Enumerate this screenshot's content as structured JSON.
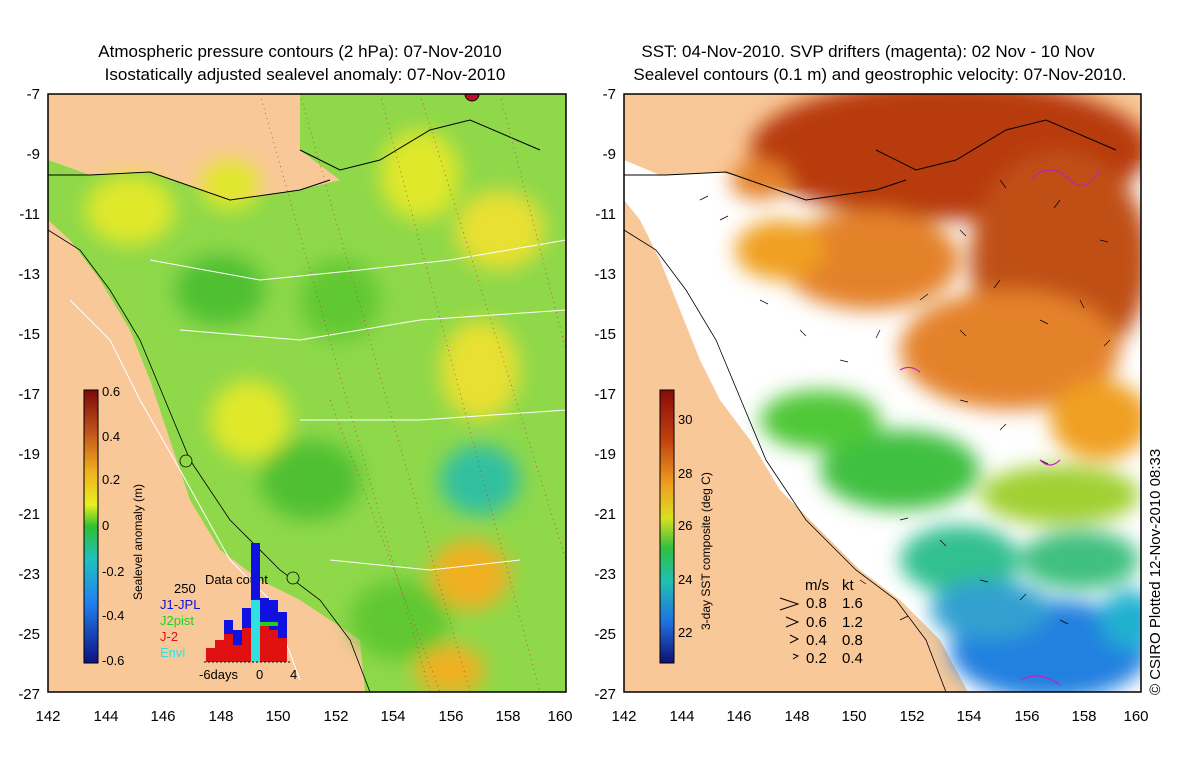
{
  "left_panel": {
    "title_line1": "Atmospheric pressure contours (2 hPa): 07-Nov-2010",
    "title_line2": "Isostatically adjusted sealevel anomaly: 07-Nov-2010",
    "colorbar": {
      "label": "Sealevel anomaly (m)",
      "ticks": [
        "0.6",
        "0.4",
        "0.2",
        "0",
        "-0.2",
        "-0.4",
        "-0.6"
      ]
    },
    "inset": {
      "title": "Data count",
      "max_label": "250",
      "legend": [
        {
          "name": "J1-JPL",
          "color": "#1010e0"
        },
        {
          "name": "J2pist",
          "color": "#20d020"
        },
        {
          "name": "J-2",
          "color": "#e01010"
        },
        {
          "name": "Envi",
          "color": "#30e0e0"
        }
      ],
      "xticks": [
        "-6days",
        "0",
        "4"
      ]
    }
  },
  "right_panel": {
    "title_line1": "SST: 04-Nov-2010. SVP drifters (magenta): 02 Nov - 10 Nov",
    "title_line2": "Sealevel contours (0.1 m) and geostrophic velocity: 07-Nov-2010.",
    "colorbar": {
      "label": "3-day SST composite (deg C)",
      "ticks": [
        "30",
        "28",
        "26",
        "24",
        "22"
      ]
    },
    "velocity_legend": {
      "header_ms": "m/s",
      "header_kt": "kt",
      "rows": [
        {
          "ms": "0.8",
          "kt": "1.6"
        },
        {
          "ms": "0.6",
          "kt": "1.2"
        },
        {
          "ms": "0.4",
          "kt": "0.8"
        },
        {
          "ms": "0.2",
          "kt": "0.4"
        }
      ]
    }
  },
  "axes": {
    "lat_ticks": [
      "-7",
      "-9",
      "-11",
      "-13",
      "-15",
      "-17",
      "-19",
      "-21",
      "-23",
      "-25",
      "-27"
    ],
    "lon_ticks": [
      "142",
      "144",
      "146",
      "148",
      "150",
      "152",
      "154",
      "156",
      "158",
      "160"
    ]
  },
  "credit": "© CSIRO Plotted 12-Nov-2010 08:33",
  "colors": {
    "land": "#f9c899",
    "sea_green": "#8ed84a",
    "sst_warm": "#b83a10",
    "sst_orange": "#e4822a"
  }
}
